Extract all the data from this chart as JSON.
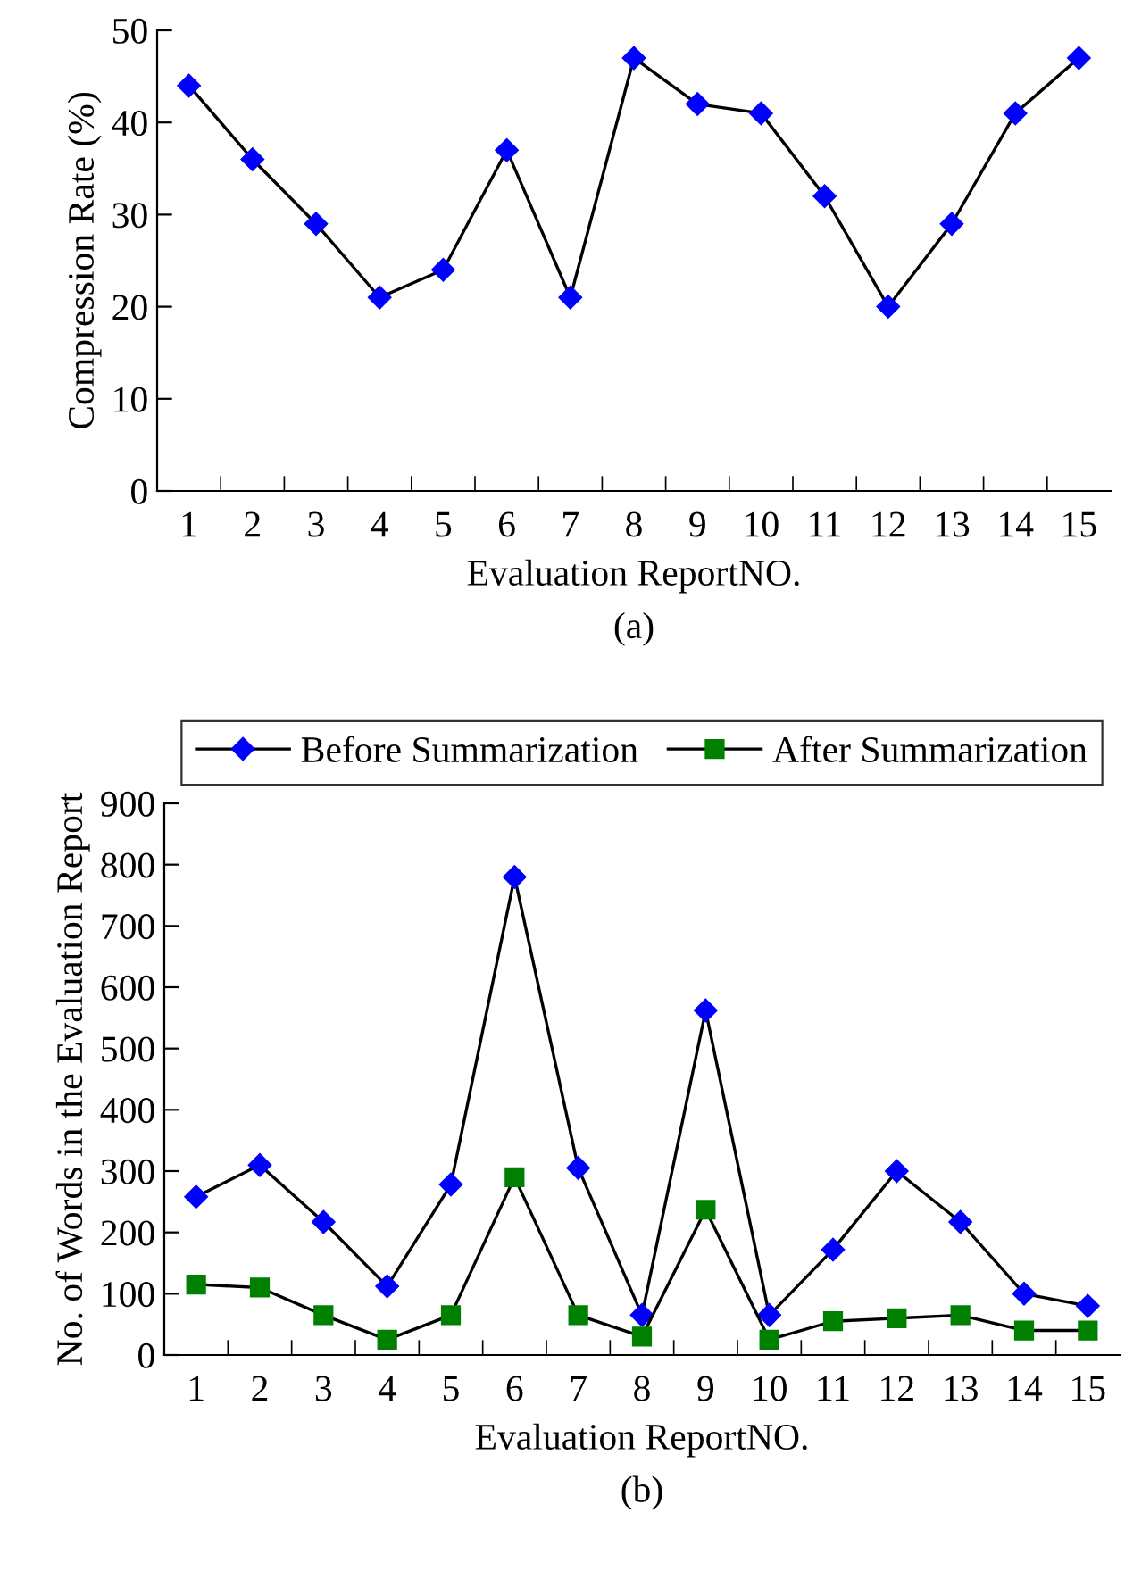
{
  "chart_data": [
    {
      "type": "line",
      "categories": [
        "1",
        "2",
        "3",
        "4",
        "5",
        "6",
        "7",
        "8",
        "9",
        "10",
        "11",
        "12",
        "13",
        "14",
        "15"
      ],
      "xlabel": "Evaluation ReportNO.",
      "ylabel": "Compression Rate (%)",
      "ylim": [
        0,
        50
      ],
      "yticks": [
        0,
        10,
        20,
        30,
        40,
        50
      ],
      "grid": false,
      "legend": false,
      "marker": "diamond",
      "line_style": "solid",
      "series": [
        {
          "color": "#0000ff",
          "values": [
            44,
            36,
            29,
            21,
            24,
            37,
            21,
            47,
            42,
            41,
            32,
            20,
            29,
            41,
            47
          ]
        }
      ],
      "annotations": [
        "(a)"
      ]
    },
    {
      "type": "line",
      "categories": [
        "1",
        "2",
        "3",
        "4",
        "5",
        "6",
        "7",
        "8",
        "9",
        "10",
        "11",
        "12",
        "13",
        "14",
        "15"
      ],
      "xlabel": "Evaluation ReportNO.",
      "ylabel": "No. of Words in the Evaluation Report",
      "ylim": [
        0,
        900
      ],
      "yticks": [
        0,
        100,
        200,
        300,
        400,
        500,
        600,
        700,
        800,
        900
      ],
      "grid": false,
      "legend": "top",
      "line_style": "solid",
      "series": [
        {
          "name": "Before Summarization",
          "color": "#0000ff",
          "marker": "diamond",
          "values": [
            258,
            310,
            217,
            112,
            278,
            780,
            305,
            65,
            562,
            65,
            172,
            300,
            217,
            100,
            80
          ]
        },
        {
          "name": "After Summarization",
          "color": "#008000",
          "marker": "square",
          "values": [
            115,
            110,
            65,
            25,
            65,
            290,
            65,
            30,
            237,
            25,
            55,
            60,
            65,
            40,
            40
          ]
        }
      ],
      "annotations": [
        "(b)"
      ]
    }
  ]
}
